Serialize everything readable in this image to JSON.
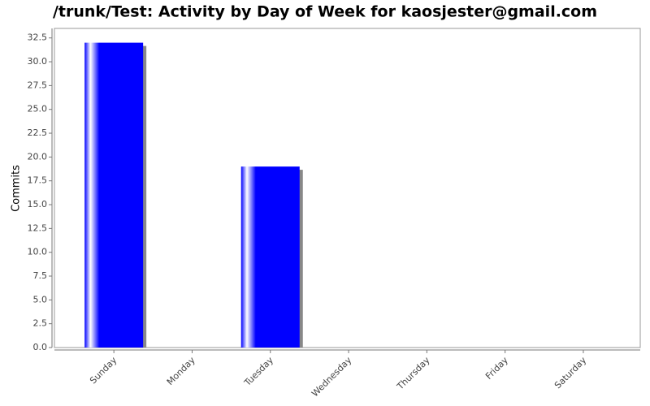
{
  "chart_data": {
    "type": "bar",
    "title": "/trunk/Test: Activity by Day of Week for kaosjester@gmail.com",
    "y_label": "Commits",
    "categories": [
      "Sunday",
      "Monday",
      "Tuesday",
      "Wednesday",
      "Thursday",
      "Friday",
      "Saturday"
    ],
    "values": [
      32,
      0,
      19,
      0,
      0,
      0,
      0
    ],
    "color": "#0000ff",
    "ylim": [
      0,
      33.5
    ],
    "yticks": [
      {
        "value": 0,
        "label": "0.0"
      },
      2.5,
      {
        "value": 5,
        "label": "5.0"
      },
      7.5,
      {
        "value": 10,
        "label": "10.0"
      },
      12.5,
      {
        "value": 15,
        "label": "15.0"
      },
      17.5,
      {
        "value": 20,
        "label": "20.0"
      },
      22.5,
      {
        "value": 25,
        "label": "25.0"
      },
      27.5,
      {
        "value": 30,
        "label": "30.0"
      },
      32.5
    ]
  }
}
